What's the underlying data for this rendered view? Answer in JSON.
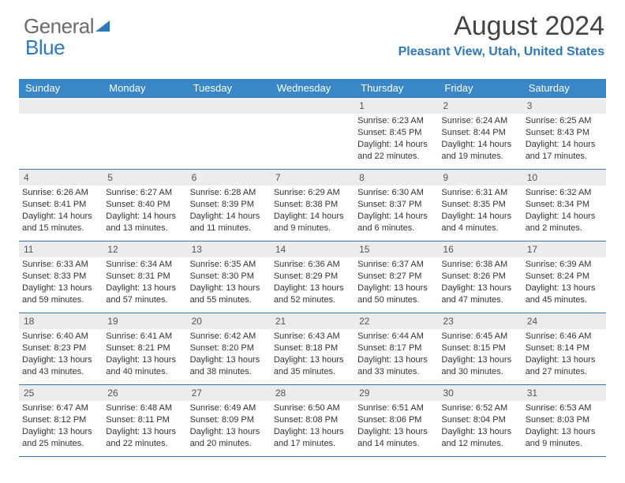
{
  "brand": {
    "left": "General",
    "right": "Blue"
  },
  "header": {
    "title": "August 2024",
    "location": "Pleasant View, Utah, United States"
  },
  "colors": {
    "accent": "#3a87c8",
    "accent_dark": "#2f78bc",
    "grey_bar": "#ececec"
  },
  "day_headers": [
    "Sunday",
    "Monday",
    "Tuesday",
    "Wednesday",
    "Thursday",
    "Friday",
    "Saturday"
  ],
  "weeks": [
    [
      {
        "day": "",
        "sunrise": "",
        "sunset": "",
        "daylight_h": "",
        "daylight_m": "",
        "empty": true
      },
      {
        "day": "",
        "sunrise": "",
        "sunset": "",
        "daylight_h": "",
        "daylight_m": "",
        "empty": true
      },
      {
        "day": "",
        "sunrise": "",
        "sunset": "",
        "daylight_h": "",
        "daylight_m": "",
        "empty": true
      },
      {
        "day": "",
        "sunrise": "",
        "sunset": "",
        "daylight_h": "",
        "daylight_m": "",
        "empty": true
      },
      {
        "day": "1",
        "sunrise": "6:23 AM",
        "sunset": "8:45 PM",
        "daylight_h": "14",
        "daylight_m": "22"
      },
      {
        "day": "2",
        "sunrise": "6:24 AM",
        "sunset": "8:44 PM",
        "daylight_h": "14",
        "daylight_m": "19"
      },
      {
        "day": "3",
        "sunrise": "6:25 AM",
        "sunset": "8:43 PM",
        "daylight_h": "14",
        "daylight_m": "17"
      }
    ],
    [
      {
        "day": "4",
        "sunrise": "6:26 AM",
        "sunset": "8:41 PM",
        "daylight_h": "14",
        "daylight_m": "15"
      },
      {
        "day": "5",
        "sunrise": "6:27 AM",
        "sunset": "8:40 PM",
        "daylight_h": "14",
        "daylight_m": "13"
      },
      {
        "day": "6",
        "sunrise": "6:28 AM",
        "sunset": "8:39 PM",
        "daylight_h": "14",
        "daylight_m": "11"
      },
      {
        "day": "7",
        "sunrise": "6:29 AM",
        "sunset": "8:38 PM",
        "daylight_h": "14",
        "daylight_m": "9"
      },
      {
        "day": "8",
        "sunrise": "6:30 AM",
        "sunset": "8:37 PM",
        "daylight_h": "14",
        "daylight_m": "6"
      },
      {
        "day": "9",
        "sunrise": "6:31 AM",
        "sunset": "8:35 PM",
        "daylight_h": "14",
        "daylight_m": "4"
      },
      {
        "day": "10",
        "sunrise": "6:32 AM",
        "sunset": "8:34 PM",
        "daylight_h": "14",
        "daylight_m": "2"
      }
    ],
    [
      {
        "day": "11",
        "sunrise": "6:33 AM",
        "sunset": "8:33 PM",
        "daylight_h": "13",
        "daylight_m": "59"
      },
      {
        "day": "12",
        "sunrise": "6:34 AM",
        "sunset": "8:31 PM",
        "daylight_h": "13",
        "daylight_m": "57"
      },
      {
        "day": "13",
        "sunrise": "6:35 AM",
        "sunset": "8:30 PM",
        "daylight_h": "13",
        "daylight_m": "55"
      },
      {
        "day": "14",
        "sunrise": "6:36 AM",
        "sunset": "8:29 PM",
        "daylight_h": "13",
        "daylight_m": "52"
      },
      {
        "day": "15",
        "sunrise": "6:37 AM",
        "sunset": "8:27 PM",
        "daylight_h": "13",
        "daylight_m": "50"
      },
      {
        "day": "16",
        "sunrise": "6:38 AM",
        "sunset": "8:26 PM",
        "daylight_h": "13",
        "daylight_m": "47"
      },
      {
        "day": "17",
        "sunrise": "6:39 AM",
        "sunset": "8:24 PM",
        "daylight_h": "13",
        "daylight_m": "45"
      }
    ],
    [
      {
        "day": "18",
        "sunrise": "6:40 AM",
        "sunset": "8:23 PM",
        "daylight_h": "13",
        "daylight_m": "43"
      },
      {
        "day": "19",
        "sunrise": "6:41 AM",
        "sunset": "8:21 PM",
        "daylight_h": "13",
        "daylight_m": "40"
      },
      {
        "day": "20",
        "sunrise": "6:42 AM",
        "sunset": "8:20 PM",
        "daylight_h": "13",
        "daylight_m": "38"
      },
      {
        "day": "21",
        "sunrise": "6:43 AM",
        "sunset": "8:18 PM",
        "daylight_h": "13",
        "daylight_m": "35"
      },
      {
        "day": "22",
        "sunrise": "6:44 AM",
        "sunset": "8:17 PM",
        "daylight_h": "13",
        "daylight_m": "33"
      },
      {
        "day": "23",
        "sunrise": "6:45 AM",
        "sunset": "8:15 PM",
        "daylight_h": "13",
        "daylight_m": "30"
      },
      {
        "day": "24",
        "sunrise": "6:46 AM",
        "sunset": "8:14 PM",
        "daylight_h": "13",
        "daylight_m": "27"
      }
    ],
    [
      {
        "day": "25",
        "sunrise": "6:47 AM",
        "sunset": "8:12 PM",
        "daylight_h": "13",
        "daylight_m": "25"
      },
      {
        "day": "26",
        "sunrise": "6:48 AM",
        "sunset": "8:11 PM",
        "daylight_h": "13",
        "daylight_m": "22"
      },
      {
        "day": "27",
        "sunrise": "6:49 AM",
        "sunset": "8:09 PM",
        "daylight_h": "13",
        "daylight_m": "20"
      },
      {
        "day": "28",
        "sunrise": "6:50 AM",
        "sunset": "8:08 PM",
        "daylight_h": "13",
        "daylight_m": "17"
      },
      {
        "day": "29",
        "sunrise": "6:51 AM",
        "sunset": "8:06 PM",
        "daylight_h": "13",
        "daylight_m": "14"
      },
      {
        "day": "30",
        "sunrise": "6:52 AM",
        "sunset": "8:04 PM",
        "daylight_h": "13",
        "daylight_m": "12"
      },
      {
        "day": "31",
        "sunrise": "6:53 AM",
        "sunset": "8:03 PM",
        "daylight_h": "13",
        "daylight_m": "9"
      }
    ]
  ],
  "labels": {
    "sunrise_prefix": "Sunrise: ",
    "sunset_prefix": "Sunset: ",
    "daylight_prefix": "Daylight: ",
    "hours_word": " hours",
    "and_word": "and ",
    "minutes_word": " minutes."
  }
}
